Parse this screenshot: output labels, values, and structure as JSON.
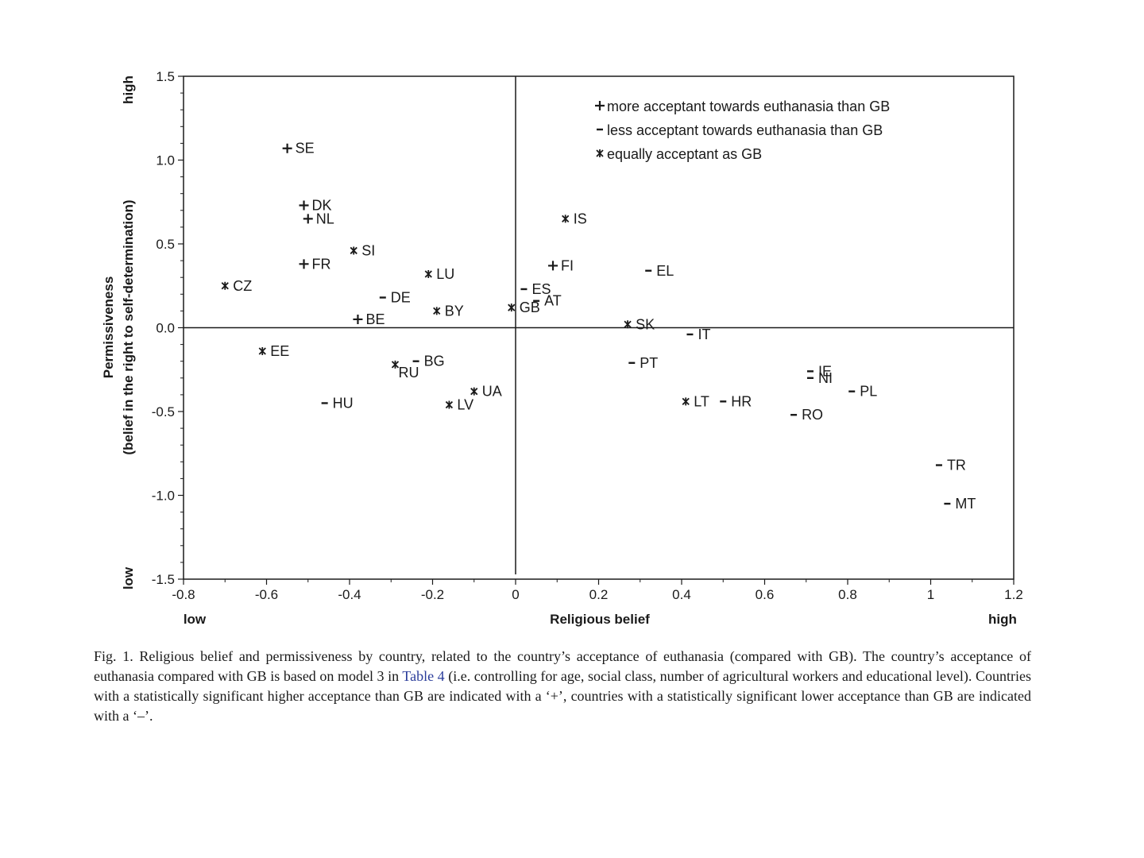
{
  "chart_data": {
    "type": "scatter",
    "xlabel": "Religious belief",
    "xlabel_low": "low",
    "xlabel_high": "high",
    "ylabel_line1": "Permissiveness",
    "ylabel_line2": "(belief in the right to self-determination)",
    "ylabel_low": "low",
    "ylabel_high": "high",
    "xlim": [
      -0.8,
      1.2
    ],
    "ylim": [
      -1.5,
      1.5
    ],
    "xticks": [
      {
        "value": -0.8,
        "label": "-0.8"
      },
      {
        "value": -0.6,
        "label": "-0.6"
      },
      {
        "value": -0.4,
        "label": "-0.4"
      },
      {
        "value": -0.2,
        "label": "-0.2"
      },
      {
        "value": 0,
        "label": "0"
      },
      {
        "value": 0.2,
        "label": "0.2"
      },
      {
        "value": 0.4,
        "label": "0.4"
      },
      {
        "value": 0.6,
        "label": "0.6"
      },
      {
        "value": 0.8,
        "label": "0.8"
      },
      {
        "value": 1,
        "label": "1"
      },
      {
        "value": 1.2,
        "label": "1.2"
      }
    ],
    "yticks": [
      {
        "value": 1.5,
        "label": "1.5"
      },
      {
        "value": 1.0,
        "label": "1.0"
      },
      {
        "value": 0.5,
        "label": "0.5"
      },
      {
        "value": 0.0,
        "label": "0.0"
      },
      {
        "value": -0.5,
        "label": "-0.5"
      },
      {
        "value": -1.0,
        "label": "-1.0"
      },
      {
        "value": -1.5,
        "label": "-1.5"
      }
    ],
    "grid": false,
    "reference_lines": {
      "x": 0,
      "y": 0
    },
    "legend": {
      "placement": "top-right",
      "entries": [
        {
          "symbol": "+",
          "text": "more acceptant towards euthanasia than GB"
        },
        {
          "symbol": "-",
          "text": "less acceptant towards euthanasia than GB"
        },
        {
          "symbol": "*",
          "text": "equally acceptant as GB"
        }
      ]
    },
    "points": [
      {
        "label": "SE",
        "x": -0.55,
        "y": 1.07,
        "marker": "+",
        "label_pos": "right"
      },
      {
        "label": "DK",
        "x": -0.51,
        "y": 0.73,
        "marker": "+",
        "label_pos": "right"
      },
      {
        "label": "NL",
        "x": -0.5,
        "y": 0.65,
        "marker": "+",
        "label_pos": "right"
      },
      {
        "label": "FR",
        "x": -0.51,
        "y": 0.38,
        "marker": "+",
        "label_pos": "right"
      },
      {
        "label": "SI",
        "x": -0.39,
        "y": 0.46,
        "marker": "*",
        "label_pos": "right"
      },
      {
        "label": "CZ",
        "x": -0.7,
        "y": 0.25,
        "marker": "*",
        "label_pos": "right"
      },
      {
        "label": "LU",
        "x": -0.21,
        "y": 0.32,
        "marker": "*",
        "label_pos": "right"
      },
      {
        "label": "DE",
        "x": -0.32,
        "y": 0.18,
        "marker": "-",
        "label_pos": "right"
      },
      {
        "label": "BY",
        "x": -0.19,
        "y": 0.1,
        "marker": "*",
        "label_pos": "right"
      },
      {
        "label": "BE",
        "x": -0.38,
        "y": 0.05,
        "marker": "+",
        "label_pos": "right"
      },
      {
        "label": "EE",
        "x": -0.61,
        "y": -0.14,
        "marker": "*",
        "label_pos": "right"
      },
      {
        "label": "BG",
        "x": -0.24,
        "y": -0.2,
        "marker": "-",
        "label_pos": "right"
      },
      {
        "label": "RU",
        "x": -0.29,
        "y": -0.22,
        "marker": "*",
        "label_pos": "below-right"
      },
      {
        "label": "HU",
        "x": -0.46,
        "y": -0.45,
        "marker": "-",
        "label_pos": "right"
      },
      {
        "label": "UA",
        "x": -0.1,
        "y": -0.38,
        "marker": "*",
        "label_pos": "right"
      },
      {
        "label": "LV",
        "x": -0.16,
        "y": -0.46,
        "marker": "*",
        "label_pos": "right"
      },
      {
        "label": "GB",
        "x": -0.01,
        "y": 0.12,
        "marker": "*",
        "label_pos": "right"
      },
      {
        "label": "IS",
        "x": 0.12,
        "y": 0.65,
        "marker": "*",
        "label_pos": "right"
      },
      {
        "label": "FI",
        "x": 0.09,
        "y": 0.37,
        "marker": "+",
        "label_pos": "right"
      },
      {
        "label": "ES",
        "x": 0.02,
        "y": 0.23,
        "marker": "-",
        "label_pos": "right"
      },
      {
        "label": "AT",
        "x": 0.05,
        "y": 0.16,
        "marker": "-",
        "label_pos": "right"
      },
      {
        "label": "EL",
        "x": 0.32,
        "y": 0.34,
        "marker": "-",
        "label_pos": "right"
      },
      {
        "label": "SK",
        "x": 0.27,
        "y": 0.02,
        "marker": "*",
        "label_pos": "right"
      },
      {
        "label": "IT",
        "x": 0.42,
        "y": -0.04,
        "marker": "-",
        "label_pos": "right"
      },
      {
        "label": "PT",
        "x": 0.28,
        "y": -0.21,
        "marker": "-",
        "label_pos": "right"
      },
      {
        "label": "LT",
        "x": 0.41,
        "y": -0.44,
        "marker": "*",
        "label_pos": "right"
      },
      {
        "label": "HR",
        "x": 0.5,
        "y": -0.44,
        "marker": "-",
        "label_pos": "right"
      },
      {
        "label": "IE",
        "x": 0.71,
        "y": -0.26,
        "marker": "-",
        "label_pos": "right"
      },
      {
        "label": "NI",
        "x": 0.71,
        "y": -0.3,
        "marker": "-",
        "label_pos": "right"
      },
      {
        "label": "PL",
        "x": 0.81,
        "y": -0.38,
        "marker": "-",
        "label_pos": "right"
      },
      {
        "label": "RO",
        "x": 0.67,
        "y": -0.52,
        "marker": "-",
        "label_pos": "right"
      },
      {
        "label": "TR",
        "x": 1.02,
        "y": -0.82,
        "marker": "-",
        "label_pos": "right"
      },
      {
        "label": "MT",
        "x": 1.04,
        "y": -1.05,
        "marker": "-",
        "label_pos": "right"
      }
    ]
  },
  "caption": {
    "part1": "Fig. 1. Religious belief and permissiveness by country, related to the country’s acceptance of euthanasia (compared with GB). The country’s acceptance of euthanasia compared with GB is based on model 3 in ",
    "link": "Table 4",
    "part2": " (i.e. controlling for age, social class, number of agricultural workers and educational level). Countries with a statistically significant higher acceptance than GB are indicated with a ‘+’, countries with a statistically significant lower acceptance than GB are indicated with a ‘–’."
  }
}
